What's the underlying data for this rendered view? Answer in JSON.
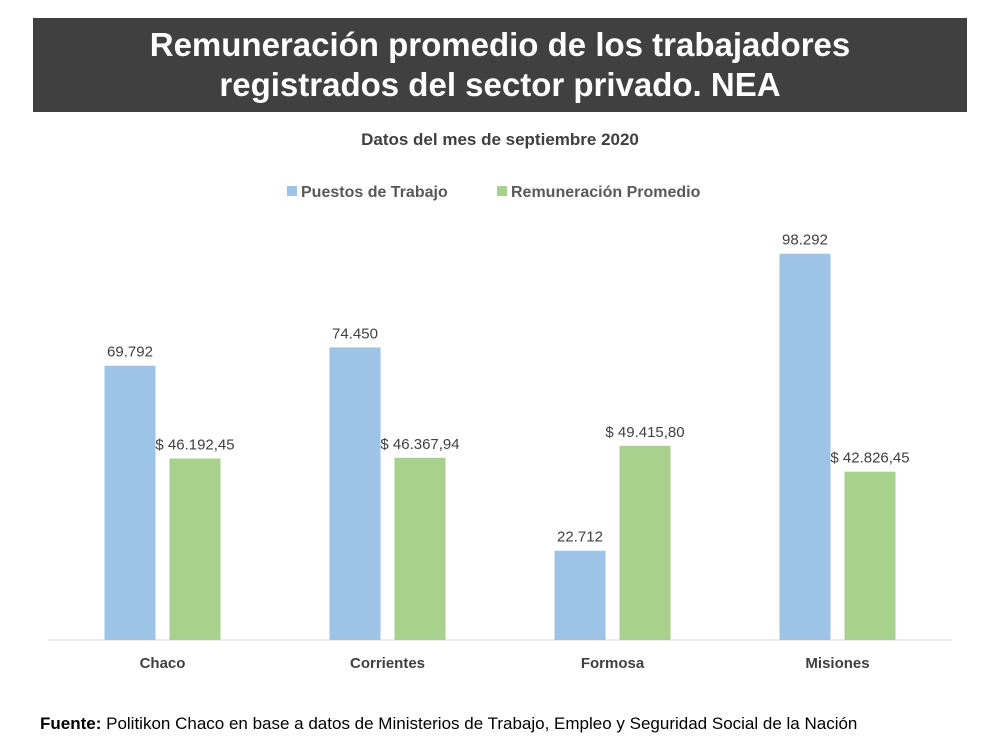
{
  "chart_data": {
    "type": "bar",
    "title": "Remuneración promedio de los trabajadores registrados del sector privado. NEA",
    "title_lines": [
      "Remuneración promedio de los trabajadores",
      "registrados del sector privado. NEA"
    ],
    "subtitle": "Datos del mes de septiembre 2020",
    "categories": [
      "Chaco",
      "Corrientes",
      "Formosa",
      "Misiones"
    ],
    "series": [
      {
        "name": "Puestos de Trabajo",
        "color": "#9DC3E6",
        "values": [
          69792,
          74450,
          22712,
          98292
        ],
        "labels": [
          "69.792",
          "74.450",
          "22.712",
          "98.292"
        ]
      },
      {
        "name": "Remuneración Promedio",
        "color": "#A9D18E",
        "values": [
          46192.45,
          46367.94,
          49415.8,
          42826.45
        ],
        "labels": [
          "$ 46.192,45",
          "$ 46.367,94",
          "$ 49.415,80",
          "$ 42.826,45"
        ]
      }
    ],
    "ylim": [
      0,
      100000
    ],
    "grid": false,
    "legend": "top-center",
    "xlabel": "",
    "ylabel": ""
  },
  "source": {
    "label": "Fuente:",
    "text": " Politikon Chaco en base a datos de Ministerios de Trabajo, Empleo y Seguridad Social de la Nación"
  }
}
